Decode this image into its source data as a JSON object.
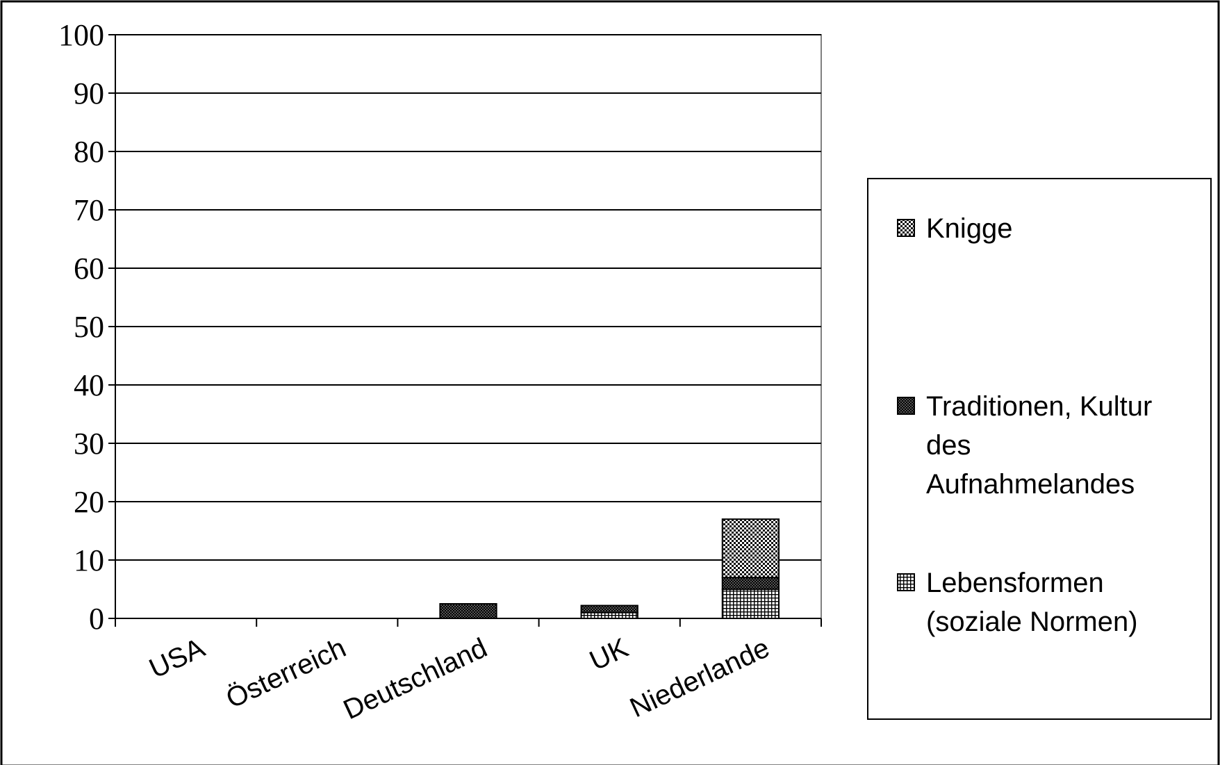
{
  "chart_data": {
    "type": "bar",
    "stacked": true,
    "title": "",
    "xlabel": "",
    "ylabel": "",
    "ylim": [
      0,
      100
    ],
    "yticks": [
      0,
      10,
      20,
      30,
      40,
      50,
      60,
      70,
      80,
      90,
      100
    ],
    "grid": "horizontal",
    "legend_position": "right",
    "categories": [
      "USA",
      "Österreich",
      "Deutschland",
      "UK",
      "Niederlande"
    ],
    "series": [
      {
        "name": "Lebensformen (soziale Normen)",
        "pattern": "grid",
        "values": [
          0,
          0,
          0,
          1,
          5
        ]
      },
      {
        "name": "Traditionen, Kultur des Aufnahmelandes",
        "pattern": "dark-checker",
        "values": [
          0,
          0,
          2.5,
          1.2,
          2
        ]
      },
      {
        "name": "Knigge",
        "pattern": "light-checker",
        "values": [
          0,
          0,
          0,
          0,
          10
        ]
      }
    ],
    "legend": {
      "items": [
        {
          "series": 2,
          "lines": [
            "Knigge"
          ]
        },
        {
          "series": 1,
          "lines": [
            "Traditionen, Kultur",
            "des",
            "Aufnahmelandes"
          ]
        },
        {
          "series": 0,
          "lines": [
            "Lebensformen",
            "(soziale Normen)"
          ]
        }
      ]
    }
  }
}
